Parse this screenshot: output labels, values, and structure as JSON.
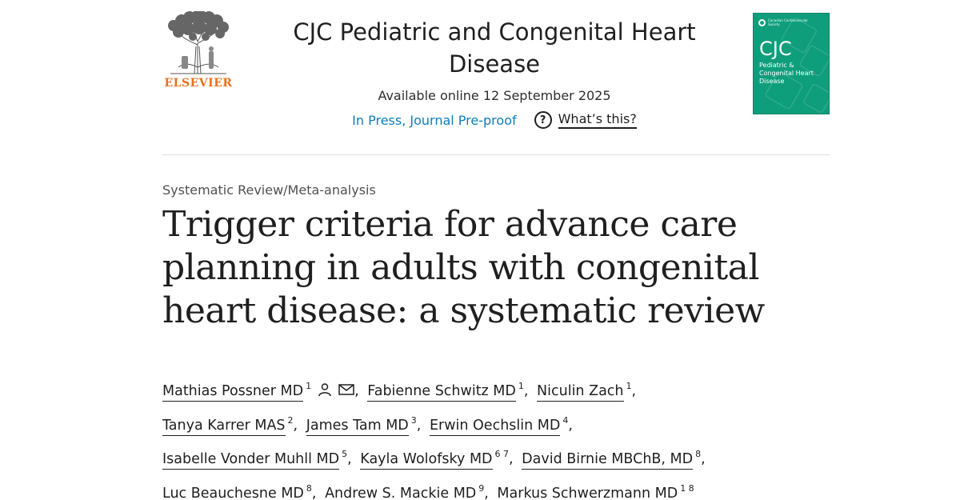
{
  "publisher": {
    "name": "ELSEVIER"
  },
  "journal": {
    "name": "CJC Pediatric and Congenital Heart Disease",
    "available": "Available online 12 September 2025",
    "status": "In Press, Journal Pre-proof",
    "whats_this": "What’s this?"
  },
  "cover": {
    "society": "Canadian Cardiovascular Society",
    "abbrev": "CJC",
    "subtitle": "Pediatric & Congenital Heart Disease"
  },
  "article": {
    "type": "Systematic Review/Meta-analysis",
    "title": "Trigger criteria for advance care planning in adults with congenital heart disease: a systematic review",
    "authors": [
      {
        "name": "Mathias Possner MD",
        "aff": "1"
      },
      {
        "name": "Fabienne Schwitz MD",
        "aff": "1"
      },
      {
        "name": "Niculin Zach",
        "aff": "1"
      },
      {
        "name": "Tanya Karrer MAS",
        "aff": "2"
      },
      {
        "name": "James Tam MD",
        "aff": "3"
      },
      {
        "name": "Erwin Oechslin MD",
        "aff": "4"
      },
      {
        "name": "Isabelle Vonder Muhll MD",
        "aff": "5"
      },
      {
        "name": "Kayla Wolofsky MD",
        "aff": "6 7"
      },
      {
        "name": "David Birnie MBChB, MD",
        "aff": "8"
      },
      {
        "name": "Luc Beauchesne MD",
        "aff": "8"
      },
      {
        "name": "Andrew S. Mackie MD",
        "aff": "9"
      },
      {
        "name": "Markus Schwerzmann MD",
        "aff": "1 8"
      }
    ]
  },
  "icons": {
    "person": "person-icon",
    "mail": "mail-icon",
    "help": "help-circle-icon",
    "tree": "elsevier-tree-logo"
  },
  "colors": {
    "accent_link": "#0c7dbb",
    "publisher_orange": "#e9711c",
    "cover_green": "#0f9e7b"
  }
}
